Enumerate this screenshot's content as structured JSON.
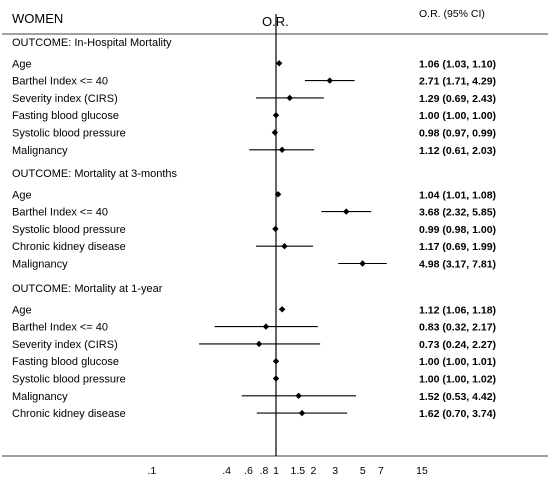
{
  "chart_data": {
    "type": "forest",
    "title": "WOMEN",
    "axis_title": "O.R.",
    "ci_header": "O.R. (95% CI)",
    "x_scale": "log",
    "reference_line": 1,
    "xlim": [
      0.1,
      15
    ],
    "tick_labels": [
      ".1",
      ".4",
      ".6",
      ".8",
      "1",
      "1.5",
      "2",
      "3",
      "5",
      "7",
      "15"
    ],
    "tick_values": [
      0.1,
      0.4,
      0.6,
      0.8,
      1,
      1.5,
      2,
      3,
      5,
      7,
      15
    ],
    "groups": [
      {
        "header": "OUTCOME: In-Hospital Mortality",
        "rows": [
          {
            "label": "Age",
            "or": 1.06,
            "lo": 1.03,
            "hi": 1.1,
            "text": "1.06 (1.03, 1.10)"
          },
          {
            "label": "Barthel Index <= 40",
            "or": 2.71,
            "lo": 1.71,
            "hi": 4.29,
            "text": "2.71 (1.71, 4.29)"
          },
          {
            "label": "Severity index (CIRS)",
            "or": 1.29,
            "lo": 0.69,
            "hi": 2.43,
            "text": "1.29 (0.69, 2.43)"
          },
          {
            "label": "Fasting blood glucose",
            "or": 1.0,
            "lo": 1.0,
            "hi": 1.0,
            "text": "1.00 (1.00, 1.00)"
          },
          {
            "label": "Systolic blood pressure",
            "or": 0.98,
            "lo": 0.97,
            "hi": 0.99,
            "text": "0.98 (0.97, 0.99)"
          },
          {
            "label": "Malignancy",
            "or": 1.12,
            "lo": 0.61,
            "hi": 2.03,
            "text": "1.12 (0.61, 2.03)"
          }
        ]
      },
      {
        "header": "OUTCOME: Mortality at 3-months",
        "rows": [
          {
            "label": "Age",
            "or": 1.04,
            "lo": 1.01,
            "hi": 1.08,
            "text": "1.04 (1.01, 1.08)"
          },
          {
            "label": "Barthel Index <= 40",
            "or": 3.68,
            "lo": 2.32,
            "hi": 5.85,
            "text": "3.68 (2.32, 5.85)"
          },
          {
            "label": "Systolic blood pressure",
            "or": 0.99,
            "lo": 0.98,
            "hi": 1.0,
            "text": "0.99 (0.98, 1.00)"
          },
          {
            "label": "Chronic kidney disease",
            "or": 1.17,
            "lo": 0.69,
            "hi": 1.99,
            "text": "1.17 (0.69, 1.99)"
          },
          {
            "label": "Malignancy",
            "or": 4.98,
            "lo": 3.17,
            "hi": 7.81,
            "text": "4.98 (3.17, 7.81)"
          }
        ]
      },
      {
        "header": "OUTCOME: Mortality at 1-year",
        "rows": [
          {
            "label": "Age",
            "or": 1.12,
            "lo": 1.06,
            "hi": 1.18,
            "text": "1.12 (1.06, 1.18)"
          },
          {
            "label": "Barthel Index <= 40",
            "or": 0.83,
            "lo": 0.32,
            "hi": 2.17,
            "text": "0.83 (0.32, 2.17)"
          },
          {
            "label": "Severity index (CIRS)",
            "or": 0.73,
            "lo": 0.24,
            "hi": 2.27,
            "text": "0.73 (0.24, 2.27)"
          },
          {
            "label": "Fasting blood glucose",
            "or": 1.0,
            "lo": 1.0,
            "hi": 1.01,
            "text": "1.00 (1.00, 1.01)"
          },
          {
            "label": "Systolic blood pressure",
            "or": 1.0,
            "lo": 1.0,
            "hi": 1.02,
            "text": "1.00 (1.00, 1.02)"
          },
          {
            "label": "Malignancy",
            "or": 1.52,
            "lo": 0.53,
            "hi": 4.42,
            "text": "1.52 (0.53, 4.42)"
          },
          {
            "label": "Chronic kidney disease",
            "or": 1.62,
            "lo": 0.7,
            "hi": 3.74,
            "text": "1.62 (0.70, 3.74)"
          }
        ]
      }
    ]
  }
}
